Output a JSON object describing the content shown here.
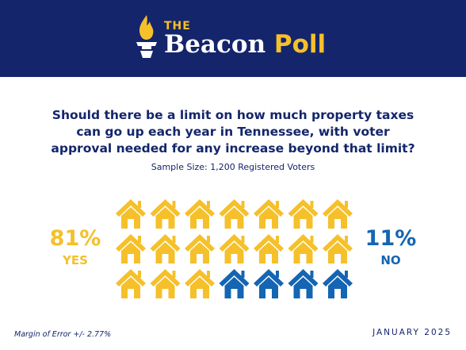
{
  "header": {
    "logo_small": "THE",
    "logo_main": "Beacon",
    "logo_accent": "Poll"
  },
  "question": "Should there be a limit on how much property taxes can go up each year in Tennessee, with voter approval needed for any increase beyond that limit?",
  "sample_size": "Sample Size: 1,200 Registered Voters",
  "yes": {
    "percent": "81%",
    "label": "YES"
  },
  "no": {
    "percent": "11%",
    "label": "NO"
  },
  "footer": {
    "margin_of_error": "Margin of Error +/- 2.77%",
    "date": "JANUARY 2025"
  },
  "colors": {
    "navy": "#14256b",
    "yes": "#f5c02a",
    "no": "#1465b3"
  },
  "chart_data": {
    "type": "pictograph",
    "icon": "house-icon",
    "categories": [
      "YES",
      "NO"
    ],
    "values": [
      81,
      11
    ],
    "icon_counts": [
      17,
      4
    ],
    "total_icons": 21,
    "rows": 3,
    "columns": 7
  }
}
